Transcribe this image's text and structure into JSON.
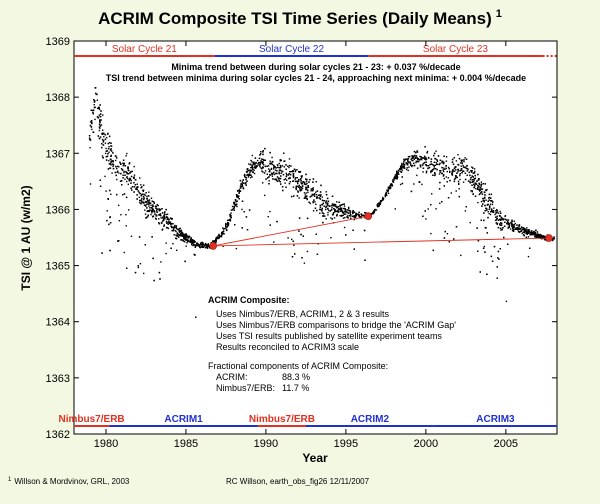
{
  "chart_data": {
    "type": "scatter",
    "title": "ACRIM Composite TSI Time Series (Daily Means)",
    "title_superscript": "1",
    "xlabel": "Year",
    "ylabel": "TSI @ 1 AU (w/m2)",
    "xlim": [
      1978,
      2008.2
    ],
    "ylim": [
      1362,
      1369
    ],
    "xticks": [
      1980,
      1985,
      1990,
      1995,
      2000,
      2005
    ],
    "yticks": [
      1362,
      1363,
      1364,
      1365,
      1366,
      1367,
      1368,
      1369
    ],
    "grid": false,
    "solar_cycles": [
      {
        "label": "Solar Cycle 21",
        "start": 1978,
        "end": 1986.8,
        "color": "#e03020"
      },
      {
        "label": "Solar Cycle 22",
        "start": 1986.8,
        "end": 1996.4,
        "color": "#2030d0"
      },
      {
        "label": "Solar Cycle 23",
        "start": 1996.4,
        "end": 2007.3,
        "color": "#e03020"
      }
    ],
    "instruments": [
      {
        "label": "Nimbus7/ERB",
        "start": 1978,
        "end": 1980.2,
        "color": "#e03020"
      },
      {
        "label": "ACRIM1",
        "start": 1980.2,
        "end": 1989.5,
        "color": "#2030d0"
      },
      {
        "label": "Nimbus7/ERB",
        "start": 1989.5,
        "end": 1992.5,
        "color": "#e03020"
      },
      {
        "label": "ACRIM2",
        "start": 1992.5,
        "end": 2000.5,
        "color": "#2030d0"
      },
      {
        "label": "ACRIM3",
        "start": 2000.5,
        "end": 2008.2,
        "color": "#2030d0"
      }
    ],
    "minima": [
      {
        "x": 1986.7,
        "y": 1365.35
      },
      {
        "x": 1996.4,
        "y": 1365.88
      },
      {
        "x": 2007.7,
        "y": 1365.49
      }
    ],
    "trend_lines": [
      {
        "from": [
          1986.7,
          1365.35
        ],
        "to": [
          1996.4,
          1365.88
        ]
      },
      {
        "from": [
          1986.7,
          1365.35
        ],
        "to": [
          2007.7,
          1365.49
        ]
      }
    ],
    "daily_mean_profile": {
      "x": [
        1978.9,
        1979.3,
        1979.8,
        1980.5,
        1981.5,
        1982.5,
        1983.5,
        1984.5,
        1985.5,
        1986.5,
        1987.5,
        1988.5,
        1989.5,
        1990.5,
        1991.5,
        1992.5,
        1993.5,
        1994.5,
        1995.5,
        1996.5,
        1997.5,
        1998.5,
        1999.5,
        2000.5,
        2001.5,
        2002.5,
        2003.5,
        2004.5,
        2005.5,
        2006.5,
        2007.5,
        2008.0
      ],
      "y": [
        1367.2,
        1368.0,
        1367.2,
        1366.8,
        1366.6,
        1366.1,
        1365.9,
        1365.6,
        1365.4,
        1365.35,
        1365.7,
        1366.5,
        1366.9,
        1366.7,
        1366.6,
        1366.4,
        1366.1,
        1366.0,
        1365.9,
        1365.9,
        1366.3,
        1366.8,
        1366.9,
        1366.8,
        1366.7,
        1366.7,
        1366.3,
        1365.9,
        1365.7,
        1365.6,
        1365.5,
        1365.5
      ]
    }
  },
  "annotations": {
    "trend_line1": "Minima trend between  during solar cycles 21 - 23: + 0.037 %/decade",
    "trend_line2": "TSI trend between minima during solar cycles 21 - 24, approaching next minima: + 0.004 %/decade",
    "composite_heading": "ACRIM Composite:",
    "composite_items": [
      "Uses Nimbus7/ERB, ACRIM1, 2 & 3  results",
      "Uses Nimbus7/ERB comparisons to bridge the 'ACRIM Gap'",
      "Uses TSI results published by satellite experiment teams",
      "Results reconciled to ACRIM3 scale"
    ],
    "fractional_heading": "Fractional components of ACRIM Composite:",
    "acrim_label": "ACRIM:",
    "acrim_value": "88.3 %",
    "nimbus_label": "Nimbus7/ERB:",
    "nimbus_value": "11.7 %"
  },
  "footer": {
    "footnote_marker": "1",
    "footnote": "Willson & Mordvinov, GRL, 2003",
    "credit": "RC Willson, earth_obs_fig26  12/11/2007"
  },
  "colors": {
    "background": "#f3f8e2",
    "plot_background": "#ffffff",
    "red": "#e03020",
    "blue": "#2030d0",
    "points": "#000000",
    "minima_marker": "#e03020"
  }
}
